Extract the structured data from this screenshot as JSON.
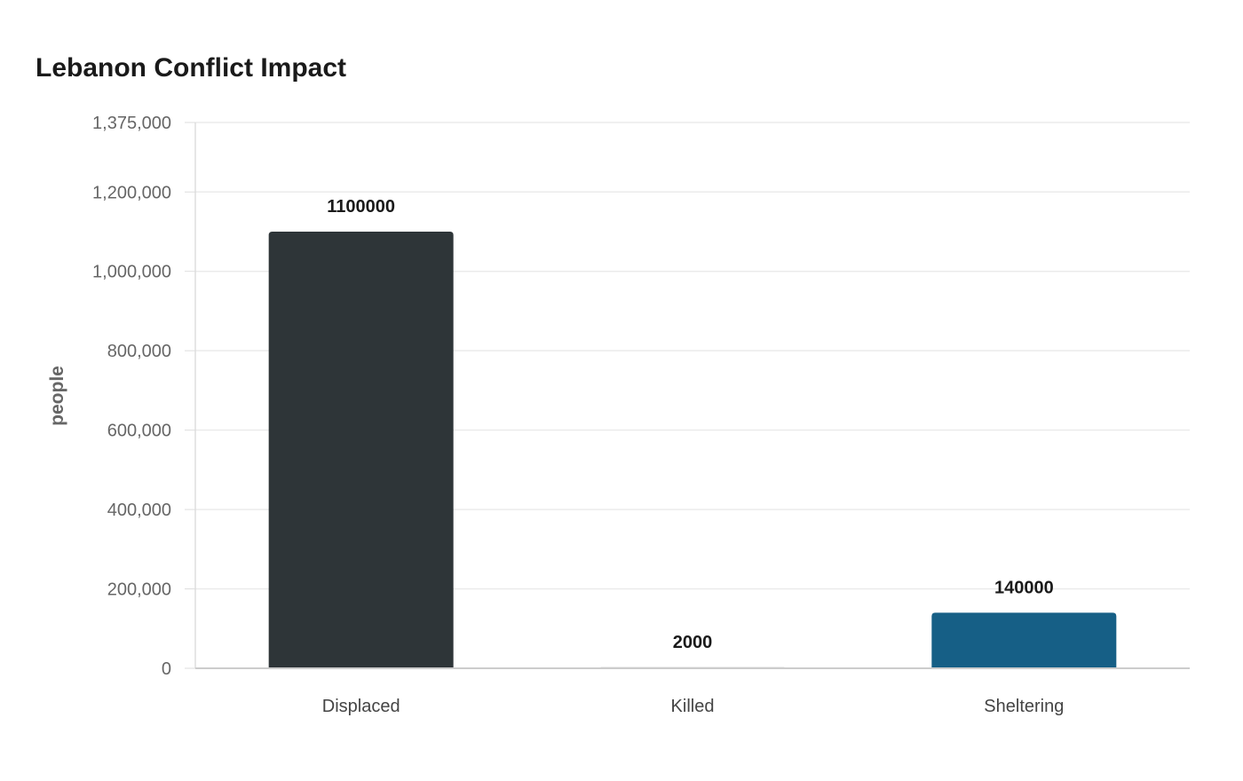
{
  "chart_data": {
    "type": "bar",
    "title": "Lebanon Conflict Impact",
    "xlabel": "",
    "ylabel": "people",
    "categories": [
      "Displaced",
      "Killed",
      "Sheltering"
    ],
    "values": [
      1100000,
      2000,
      140000
    ],
    "data_labels": [
      "1100000",
      "2000",
      "140000"
    ],
    "colors": [
      "#2e3538",
      "#dcdcdc",
      "#165f86"
    ],
    "ylim": [
      0,
      1375000
    ],
    "yticks": [
      0,
      200000,
      400000,
      600000,
      800000,
      1000000,
      1200000,
      1375000
    ],
    "ytick_labels": [
      "0",
      "200,000",
      "400,000",
      "600,000",
      "800,000",
      "1,000,000",
      "1,200,000",
      "1,375,000"
    ],
    "grid": true,
    "legend": "none"
  }
}
